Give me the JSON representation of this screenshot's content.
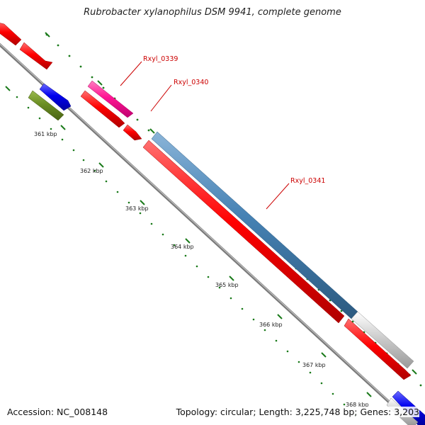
{
  "title": "Rubrobacter xylanophilus DSM 9941, complete genome",
  "accession_label": "Accession:",
  "accession": "NC_008148",
  "topology_label": "Topology:",
  "topology": "circular;",
  "length_label": "Length:",
  "length": "3,225,748 bp;",
  "genes_label": "Genes:",
  "genes": "3,203",
  "colors": {
    "backbone": "#888888",
    "cds_red": "#ee0000",
    "cds_blue": "#0000ee",
    "cds_olive": "#6b8e23",
    "cds_magenta": "#ff1493",
    "cds_steelblue": "#4682b4",
    "tick_green": "#1a7a1a",
    "label_red": "#cc0000"
  },
  "ticks": [
    {
      "label": "361 kbp"
    },
    {
      "label": "362 kbp"
    },
    {
      "label": "363 kbp"
    },
    {
      "label": "364 kbp"
    },
    {
      "label": "365 kbp"
    },
    {
      "label": "366 kbp"
    },
    {
      "label": "367 kbp"
    },
    {
      "label": "368 kbp"
    }
  ],
  "gene_labels": [
    "Rxyl_0339",
    "Rxyl_0340",
    "Rxyl_0341"
  ]
}
